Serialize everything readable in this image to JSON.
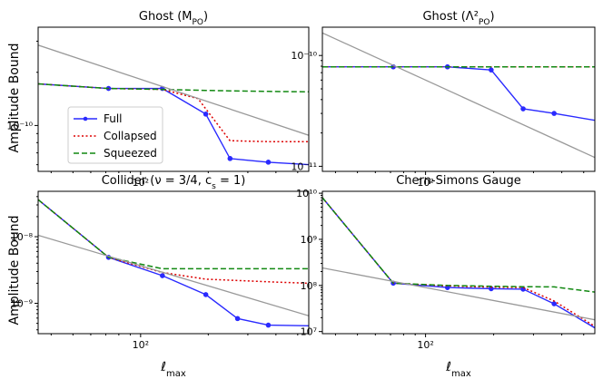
{
  "figure": {
    "shared_ylabel": "Amplitude Bound",
    "shared_xlabel": "ℓmax"
  },
  "legend": [
    {
      "name": "Full",
      "style": "solid-marker",
      "color": "#2a2aff"
    },
    {
      "name": "Collapsed",
      "style": "dotted",
      "color": "#dd0000"
    },
    {
      "name": "Squeezed",
      "style": "dashed",
      "color": "#118811"
    }
  ],
  "colors": {
    "full": "#2a2aff",
    "collapsed": "#dd0000",
    "squeezed": "#118811",
    "reference": "#999999"
  },
  "chart_data": [
    {
      "type": "line",
      "title": "Ghost (M_PO)",
      "xscale": "log",
      "yscale": "log",
      "xlim": [
        35,
        560
      ],
      "ylim": [
        5.5e-11,
        3.6e-10
      ],
      "xticks": [
        {
          "value": 100,
          "label": "10²"
        }
      ],
      "yticks": [
        {
          "value": 1e-10,
          "label": "10⁻¹⁰"
        }
      ],
      "show_xlabel": false,
      "show_ylabel": true,
      "series": [
        {
          "name": "Full",
          "x": [
            35,
            72,
            125,
            195,
            250,
            370,
            560
          ],
          "y": [
            1.72e-10,
            1.62e-10,
            1.62e-10,
            1.16e-10,
            6.5e-11,
            6.2e-11,
            6e-11
          ]
        },
        {
          "name": "Collapsed",
          "x": [
            35,
            72,
            125,
            180,
            250,
            370,
            560
          ],
          "y": [
            1.72e-10,
            1.62e-10,
            1.6e-10,
            1.42e-10,
            8.2e-11,
            8.1e-11,
            8.1e-11
          ]
        },
        {
          "name": "Squeezed",
          "x": [
            35,
            72,
            125,
            195,
            250,
            370,
            560
          ],
          "y": [
            1.72e-10,
            1.62e-10,
            1.6e-10,
            1.58e-10,
            1.57e-10,
            1.56e-10,
            1.55e-10
          ]
        },
        {
          "name": "",
          "x": [
            35,
            560
          ],
          "y": [
            2.85e-10,
            8.8e-11
          ]
        }
      ]
    },
    {
      "type": "line",
      "title": "Ghost (Λ²_PO)",
      "xscale": "log",
      "yscale": "log",
      "xlim": [
        35,
        560
      ],
      "ylim": [
        9e-12,
        1.8e-10
      ],
      "xticks": [
        {
          "value": 100,
          "label": "10²"
        }
      ],
      "yticks": [
        {
          "value": 1e-10,
          "label": "10⁻¹⁰"
        },
        {
          "value": 1e-11,
          "label": "10⁻¹¹"
        }
      ],
      "show_xlabel": false,
      "show_ylabel": false,
      "series": [
        {
          "name": "Full",
          "x": [
            35,
            72,
            125,
            195,
            270,
            370,
            560
          ],
          "y": [
            7.9e-11,
            7.9e-11,
            7.9e-11,
            7.4e-11,
            3.3e-11,
            3e-11,
            2.6e-11
          ]
        },
        {
          "name": "Collapsed",
          "x": [
            35,
            72,
            125,
            195,
            560
          ],
          "y": [
            7.9e-11,
            7.9e-11,
            7.9e-11,
            7.9e-11,
            7.9e-11
          ]
        },
        {
          "name": "Squeezed",
          "x": [
            35,
            72,
            125,
            195,
            560
          ],
          "y": [
            7.9e-11,
            7.9e-11,
            7.9e-11,
            7.9e-11,
            7.9e-11
          ]
        },
        {
          "name": "",
          "x": [
            35,
            560
          ],
          "y": [
            1.6e-10,
            1.2e-11
          ]
        }
      ]
    },
    {
      "type": "line",
      "title": "Collider (ν = 3/4, c_s = 1)",
      "xscale": "log",
      "yscale": "log",
      "xlim": [
        35,
        560
      ],
      "ylim": [
        3.5e-10,
        4.8e-08
      ],
      "xticks": [
        {
          "value": 100,
          "label": "10²"
        }
      ],
      "yticks": [
        {
          "value": 1e-08,
          "label": "10⁻⁸"
        },
        {
          "value": 1e-09,
          "label": "10⁻⁹"
        }
      ],
      "show_xlabel": true,
      "show_ylabel": true,
      "series": [
        {
          "name": "Full",
          "x": [
            35,
            72,
            125,
            195,
            270,
            370,
            560
          ],
          "y": [
            3.6e-08,
            4.9e-09,
            2.6e-09,
            1.35e-09,
            5.9e-10,
            4.7e-10,
            4.6e-10
          ]
        },
        {
          "name": "Collapsed",
          "x": [
            35,
            72,
            125,
            195,
            370,
            560
          ],
          "y": [
            3.6e-08,
            4.9e-09,
            2.9e-09,
            2.3e-09,
            2.1e-09,
            2e-09
          ]
        },
        {
          "name": "Squeezed",
          "x": [
            35,
            72,
            125,
            195,
            370,
            560
          ],
          "y": [
            3.6e-08,
            4.9e-09,
            3.3e-09,
            3.3e-09,
            3.3e-09,
            3.3e-09
          ]
        },
        {
          "name": "",
          "x": [
            35,
            560
          ],
          "y": [
            1.05e-08,
            6.5e-10
          ]
        }
      ]
    },
    {
      "type": "line",
      "title": "Chern-Simons Gauge",
      "xscale": "log",
      "yscale": "log",
      "xlim": [
        35,
        560
      ],
      "ylim": [
        9000000.0,
        11000000000.0
      ],
      "xticks": [
        {
          "value": 100,
          "label": "10²"
        }
      ],
      "yticks": [
        {
          "value": 10000000000.0,
          "label": "10¹⁰"
        },
        {
          "value": 1000000000.0,
          "label": "10⁹"
        },
        {
          "value": 100000000.0,
          "label": "10⁸"
        },
        {
          "value": 10000000.0,
          "label": "10⁷"
        }
      ],
      "show_xlabel": true,
      "show_ylabel": false,
      "series": [
        {
          "name": "Full",
          "x": [
            35,
            72,
            125,
            195,
            270,
            370,
            560
          ],
          "y": [
            8000000000.0,
            112000000.0,
            90000000.0,
            85000000.0,
            83000000.0,
            40000000.0,
            12000000.0
          ]
        },
        {
          "name": "Collapsed",
          "x": [
            35,
            72,
            125,
            195,
            270,
            370,
            560
          ],
          "y": [
            8000000000.0,
            112000000.0,
            98000000.0,
            92000000.0,
            90000000.0,
            46000000.0,
            13000000.0
          ]
        },
        {
          "name": "Squeezed",
          "x": [
            35,
            72,
            125,
            195,
            270,
            370,
            560
          ],
          "y": [
            8000000000.0,
            112000000.0,
            100000000.0,
            96000000.0,
            94000000.0,
            93000000.0,
            72000000.0
          ]
        },
        {
          "name": "",
          "x": [
            35,
            560
          ],
          "y": [
            240000000.0,
            18000000.0
          ]
        }
      ]
    }
  ]
}
